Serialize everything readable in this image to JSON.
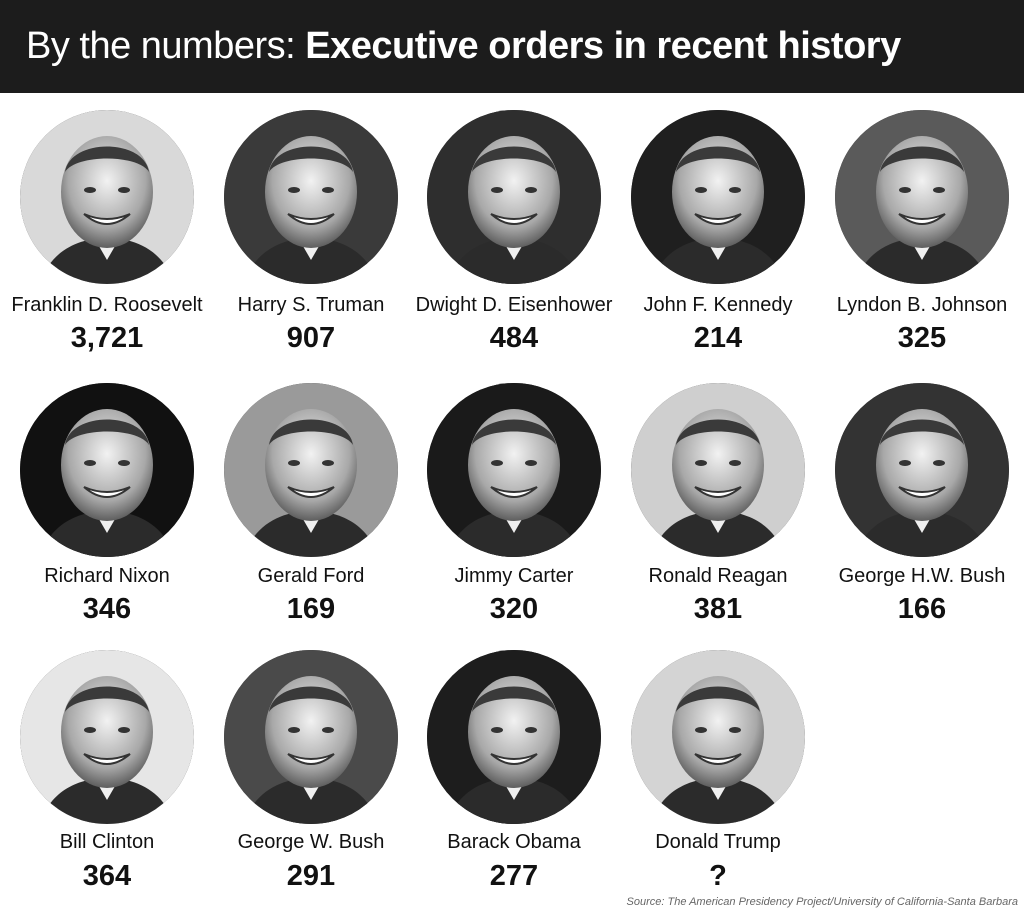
{
  "header": {
    "title_light": "By the numbers: ",
    "title_bold": "Executive orders in recent history"
  },
  "presidents": [
    {
      "name": "Franklin D. Roosevelt",
      "count": "3,721",
      "bg": "#d9d9d9"
    },
    {
      "name": "Harry S. Truman",
      "count": "907",
      "bg": "#3a3a3a"
    },
    {
      "name": "Dwight D. Eisenhower",
      "count": "484",
      "bg": "#2e2e2e"
    },
    {
      "name": "John F. Kennedy",
      "count": "214",
      "bg": "#1f1f1f"
    },
    {
      "name": "Lyndon B. Johnson",
      "count": "325",
      "bg": "#5a5a5a"
    },
    {
      "name": "Richard Nixon",
      "count": "346",
      "bg": "#111111"
    },
    {
      "name": "Gerald Ford",
      "count": "169",
      "bg": "#9a9a9a"
    },
    {
      "name": "Jimmy Carter",
      "count": "320",
      "bg": "#1a1a1a"
    },
    {
      "name": "Ronald Reagan",
      "count": "381",
      "bg": "#cfcfcf"
    },
    {
      "name": "George H.W. Bush",
      "count": "166",
      "bg": "#333333"
    },
    {
      "name": "Bill Clinton",
      "count": "364",
      "bg": "#e6e6e6"
    },
    {
      "name": "George W. Bush",
      "count": "291",
      "bg": "#4a4a4a"
    },
    {
      "name": "Barack Obama",
      "count": "277",
      "bg": "#1d1d1d"
    },
    {
      "name": "Donald Trump",
      "count": "?",
      "bg": "#d4d4d4"
    }
  ],
  "source": "Source: The American Presidency Project/University of California-Santa Barbara"
}
